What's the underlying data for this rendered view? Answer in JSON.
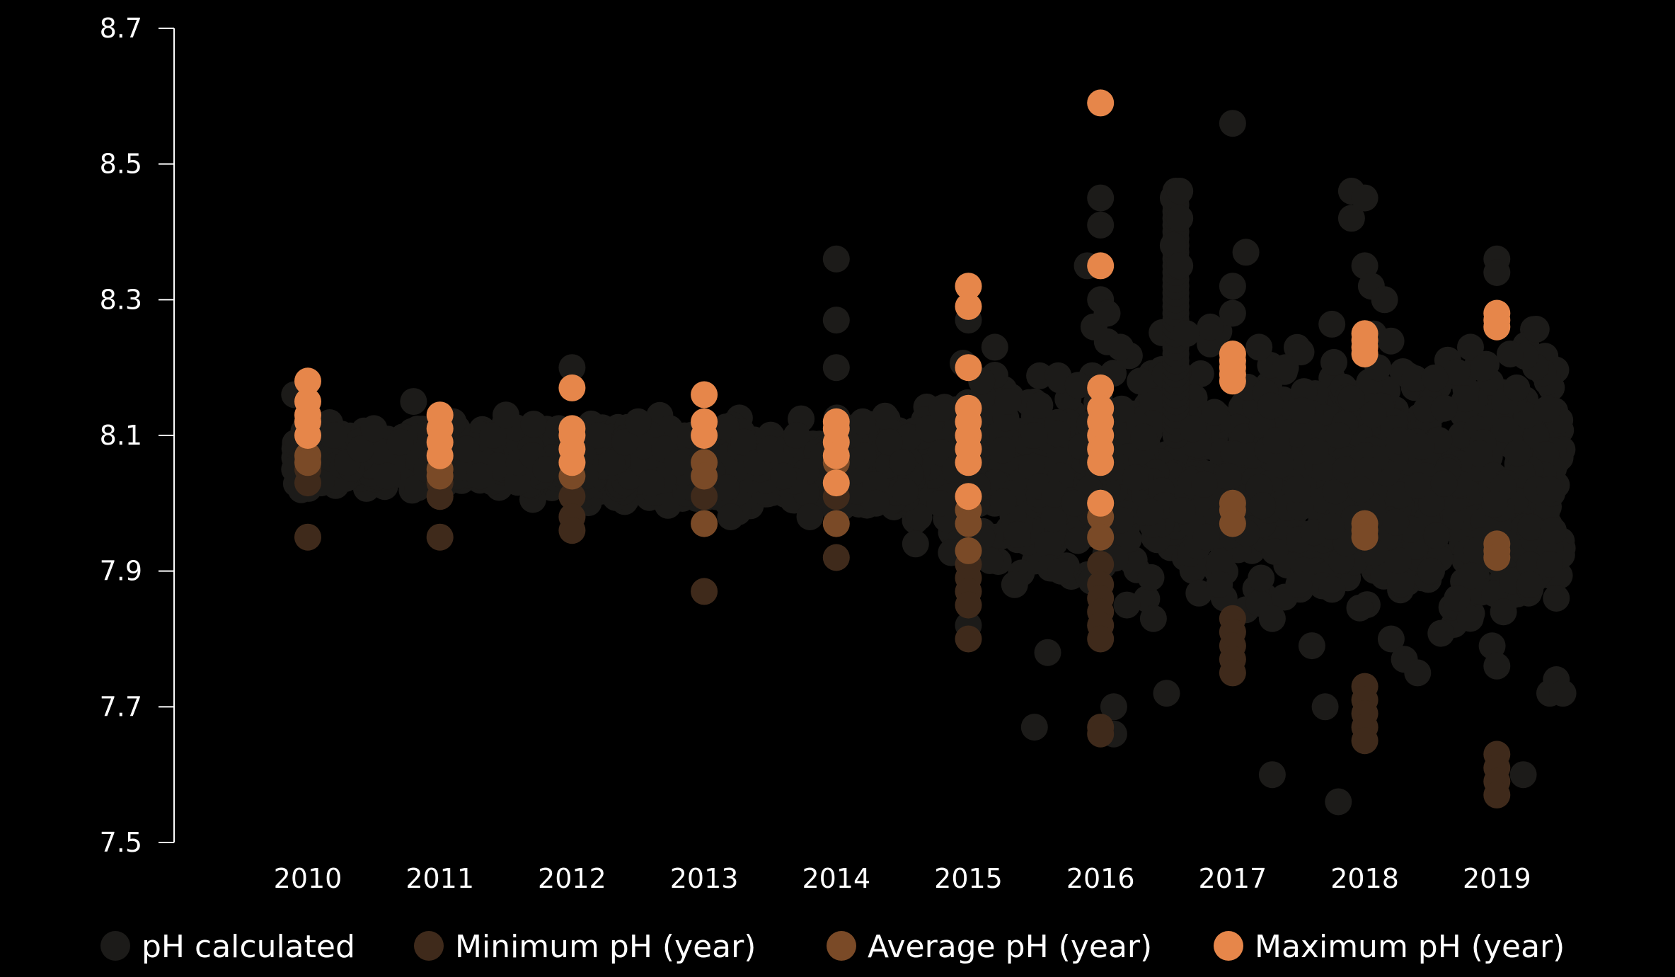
{
  "chart_data": {
    "type": "scatter",
    "title": "",
    "xlabel": "",
    "ylabel": "",
    "x_categories": [
      "2010",
      "2011",
      "2012",
      "2013",
      "2014",
      "2015",
      "2016",
      "2017",
      "2018",
      "2019"
    ],
    "x_range": [
      2009.1,
      2019.6
    ],
    "ylim": [
      7.5,
      8.7
    ],
    "yticks": [
      7.5,
      7.7,
      7.9,
      8.1,
      8.3,
      8.5,
      8.7
    ],
    "ytick_labels": [
      "7.5",
      "7.7",
      "7.9",
      "8.1",
      "8.3",
      "8.5",
      "8.7"
    ],
    "grid": false,
    "legend_position": "bottom",
    "series": [
      {
        "name": "pH calculated",
        "color": "#1c1b19",
        "note": "dense monthly cloud of individual samples",
        "points": [
          [
            2009.9,
            8.16
          ],
          [
            2009.9,
            8.05
          ],
          [
            2009.95,
            8.02
          ],
          [
            2010.0,
            8.12
          ],
          [
            2010.05,
            8.07
          ],
          [
            2010.1,
            8.03
          ],
          [
            2010.2,
            8.1
          ],
          [
            2010.3,
            8.06
          ],
          [
            2010.4,
            8.08
          ],
          [
            2010.5,
            8.11
          ],
          [
            2010.6,
            8.04
          ],
          [
            2010.7,
            8.09
          ],
          [
            2010.8,
            8.15
          ],
          [
            2010.9,
            8.05
          ],
          [
            2011.0,
            8.01
          ],
          [
            2011.1,
            8.12
          ],
          [
            2011.2,
            8.08
          ],
          [
            2011.3,
            8.04
          ],
          [
            2011.4,
            8.1
          ],
          [
            2011.5,
            8.13
          ],
          [
            2011.6,
            8.06
          ],
          [
            2011.7,
            8.07
          ],
          [
            2011.8,
            8.05
          ],
          [
            2011.9,
            8.11
          ],
          [
            2012.0,
            8.2
          ],
          [
            2012.0,
            7.98
          ],
          [
            2012.1,
            8.04
          ],
          [
            2012.2,
            8.1
          ],
          [
            2012.3,
            8.06
          ],
          [
            2012.4,
            8.09
          ],
          [
            2012.5,
            8.12
          ],
          [
            2012.6,
            8.03
          ],
          [
            2012.7,
            8.08
          ],
          [
            2012.8,
            8.06
          ],
          [
            2012.9,
            8.1
          ],
          [
            2013.0,
            8.03
          ],
          [
            2013.2,
            7.98
          ],
          [
            2013.3,
            8.09
          ],
          [
            2013.4,
            8.06
          ],
          [
            2013.5,
            8.08
          ],
          [
            2013.6,
            8.04
          ],
          [
            2013.7,
            8.1
          ],
          [
            2013.8,
            7.98
          ],
          [
            2013.9,
            8.07
          ],
          [
            2014.0,
            8.36
          ],
          [
            2014.0,
            8.27
          ],
          [
            2014.0,
            8.2
          ],
          [
            2014.1,
            8.1
          ],
          [
            2014.2,
            8.12
          ],
          [
            2014.3,
            8.0
          ],
          [
            2014.4,
            8.09
          ],
          [
            2014.5,
            8.06
          ],
          [
            2014.6,
            7.94
          ],
          [
            2014.7,
            8.11
          ],
          [
            2014.8,
            8.14
          ],
          [
            2014.9,
            8.05
          ],
          [
            2015.0,
            8.32
          ],
          [
            2015.0,
            8.27
          ],
          [
            2015.0,
            8.12
          ],
          [
            2015.0,
            7.82
          ],
          [
            2015.1,
            8.18
          ],
          [
            2015.1,
            7.95
          ],
          [
            2015.2,
            8.23
          ],
          [
            2015.3,
            8.15
          ],
          [
            2015.35,
            7.88
          ],
          [
            2015.5,
            8.1
          ],
          [
            2015.5,
            7.67
          ],
          [
            2015.6,
            7.78
          ],
          [
            2015.7,
            7.9
          ],
          [
            2015.8,
            8.0
          ],
          [
            2015.9,
            8.35
          ],
          [
            2015.95,
            8.26
          ],
          [
            2016.0,
            8.59
          ],
          [
            2016.0,
            8.45
          ],
          [
            2016.0,
            8.41
          ],
          [
            2016.0,
            8.3
          ],
          [
            2016.05,
            8.28
          ],
          [
            2016.1,
            7.7
          ],
          [
            2016.1,
            7.66
          ],
          [
            2016.15,
            8.23
          ],
          [
            2016.2,
            7.85
          ],
          [
            2016.3,
            8.18
          ],
          [
            2016.4,
            7.83
          ],
          [
            2016.5,
            7.72
          ],
          [
            2016.55,
            8.45
          ],
          [
            2016.55,
            8.38
          ],
          [
            2016.6,
            8.46
          ],
          [
            2016.6,
            8.42
          ],
          [
            2016.6,
            8.35
          ],
          [
            2016.65,
            8.25
          ],
          [
            2016.7,
            8.11
          ],
          [
            2016.8,
            7.95
          ],
          [
            2016.9,
            7.88
          ],
          [
            2017.0,
            8.32
          ],
          [
            2017.0,
            8.28
          ],
          [
            2017.0,
            8.56
          ],
          [
            2017.1,
            8.37
          ],
          [
            2017.2,
            8.23
          ],
          [
            2017.3,
            7.83
          ],
          [
            2017.3,
            7.6
          ],
          [
            2017.4,
            8.2
          ],
          [
            2017.5,
            7.88
          ],
          [
            2017.6,
            7.79
          ],
          [
            2017.7,
            7.7
          ],
          [
            2017.8,
            7.56
          ],
          [
            2017.8,
            8.1
          ],
          [
            2017.9,
            8.46
          ],
          [
            2017.9,
            8.42
          ],
          [
            2018.0,
            8.45
          ],
          [
            2018.0,
            8.35
          ],
          [
            2018.05,
            8.32
          ],
          [
            2018.1,
            8.2
          ],
          [
            2018.15,
            8.3
          ],
          [
            2018.2,
            7.8
          ],
          [
            2018.3,
            7.77
          ],
          [
            2018.4,
            7.75
          ],
          [
            2018.5,
            7.9
          ],
          [
            2018.6,
            8.14
          ],
          [
            2018.7,
            7.86
          ],
          [
            2018.8,
            8.23
          ],
          [
            2018.9,
            8.2
          ],
          [
            2019.0,
            8.36
          ],
          [
            2019.0,
            8.34
          ],
          [
            2019.0,
            7.76
          ],
          [
            2019.05,
            7.84
          ],
          [
            2019.1,
            8.22
          ],
          [
            2019.15,
            8.17
          ],
          [
            2019.2,
            7.6
          ],
          [
            2019.25,
            7.88
          ],
          [
            2019.3,
            8.02
          ],
          [
            2019.4,
            8.02
          ],
          [
            2019.4,
            7.72
          ],
          [
            2019.45,
            7.74
          ],
          [
            2019.5,
            7.72
          ],
          [
            2019.45,
            7.86
          ],
          [
            2019.4,
            7.91
          ]
        ]
      },
      {
        "name": "Minimum pH (year)",
        "color": "#3f2a1b",
        "points": [
          [
            2010,
            8.05
          ],
          [
            2010,
            8.03
          ],
          [
            2010,
            7.95
          ],
          [
            2011,
            8.03
          ],
          [
            2011,
            8.01
          ],
          [
            2011,
            7.95
          ],
          [
            2012,
            8.01
          ],
          [
            2012,
            7.98
          ],
          [
            2012,
            7.96
          ],
          [
            2013,
            8.01
          ],
          [
            2013,
            7.87
          ],
          [
            2014,
            8.01
          ],
          [
            2014,
            7.92
          ],
          [
            2015,
            7.91
          ],
          [
            2015,
            7.89
          ],
          [
            2015,
            7.87
          ],
          [
            2015,
            7.85
          ],
          [
            2015,
            7.8
          ],
          [
            2016,
            7.91
          ],
          [
            2016,
            7.88
          ],
          [
            2016,
            7.86
          ],
          [
            2016,
            7.84
          ],
          [
            2016,
            7.82
          ],
          [
            2016,
            7.8
          ],
          [
            2016,
            7.67
          ],
          [
            2016,
            7.66
          ],
          [
            2017,
            7.83
          ],
          [
            2017,
            7.81
          ],
          [
            2017,
            7.79
          ],
          [
            2017,
            7.77
          ],
          [
            2017,
            7.75
          ],
          [
            2018,
            7.73
          ],
          [
            2018,
            7.71
          ],
          [
            2018,
            7.69
          ],
          [
            2018,
            7.67
          ],
          [
            2018,
            7.65
          ],
          [
            2019,
            7.63
          ],
          [
            2019,
            7.61
          ],
          [
            2019,
            7.59
          ],
          [
            2019,
            7.57
          ]
        ]
      },
      {
        "name": "Average pH (year)",
        "color": "#7a4a27",
        "points": [
          [
            2010,
            8.07
          ],
          [
            2010,
            8.06
          ],
          [
            2011,
            8.05
          ],
          [
            2011,
            8.04
          ],
          [
            2012,
            8.06
          ],
          [
            2012,
            8.04
          ],
          [
            2013,
            8.06
          ],
          [
            2013,
            8.04
          ],
          [
            2013,
            7.97
          ],
          [
            2014,
            8.06
          ],
          [
            2014,
            7.97
          ],
          [
            2015,
            7.99
          ],
          [
            2015,
            7.97
          ],
          [
            2015,
            7.93
          ],
          [
            2016,
            8.0
          ],
          [
            2016,
            7.98
          ],
          [
            2016,
            7.95
          ],
          [
            2017,
            8.0
          ],
          [
            2017,
            7.99
          ],
          [
            2017,
            7.97
          ],
          [
            2018,
            7.97
          ],
          [
            2018,
            7.96
          ],
          [
            2018,
            7.95
          ],
          [
            2019,
            7.94
          ],
          [
            2019,
            7.93
          ],
          [
            2019,
            7.92
          ]
        ]
      },
      {
        "name": "Maximum pH (year)",
        "color": "#e6864a",
        "points": [
          [
            2010,
            8.18
          ],
          [
            2010,
            8.15
          ],
          [
            2010,
            8.13
          ],
          [
            2010,
            8.12
          ],
          [
            2010,
            8.1
          ],
          [
            2011,
            8.13
          ],
          [
            2011,
            8.11
          ],
          [
            2011,
            8.09
          ],
          [
            2011,
            8.07
          ],
          [
            2012,
            8.17
          ],
          [
            2012,
            8.11
          ],
          [
            2012,
            8.1
          ],
          [
            2012,
            8.08
          ],
          [
            2012,
            8.06
          ],
          [
            2013,
            8.16
          ],
          [
            2013,
            8.12
          ],
          [
            2013,
            8.1
          ],
          [
            2014,
            8.12
          ],
          [
            2014,
            8.11
          ],
          [
            2014,
            8.09
          ],
          [
            2014,
            8.07
          ],
          [
            2014,
            8.03
          ],
          [
            2015,
            8.32
          ],
          [
            2015,
            8.29
          ],
          [
            2015,
            8.2
          ],
          [
            2015,
            8.14
          ],
          [
            2015,
            8.12
          ],
          [
            2015,
            8.1
          ],
          [
            2015,
            8.08
          ],
          [
            2015,
            8.06
          ],
          [
            2015,
            8.01
          ],
          [
            2016,
            8.59
          ],
          [
            2016,
            8.35
          ],
          [
            2016,
            8.17
          ],
          [
            2016,
            8.14
          ],
          [
            2016,
            8.12
          ],
          [
            2016,
            8.1
          ],
          [
            2016,
            8.08
          ],
          [
            2016,
            8.06
          ],
          [
            2016,
            8.0
          ],
          [
            2017,
            8.22
          ],
          [
            2017,
            8.21
          ],
          [
            2017,
            8.2
          ],
          [
            2017,
            8.19
          ],
          [
            2017,
            8.18
          ],
          [
            2018,
            8.25
          ],
          [
            2018,
            8.24
          ],
          [
            2018,
            8.23
          ],
          [
            2018,
            8.22
          ],
          [
            2019,
            8.28
          ],
          [
            2019,
            8.27
          ],
          [
            2019,
            8.26
          ]
        ]
      }
    ]
  }
}
